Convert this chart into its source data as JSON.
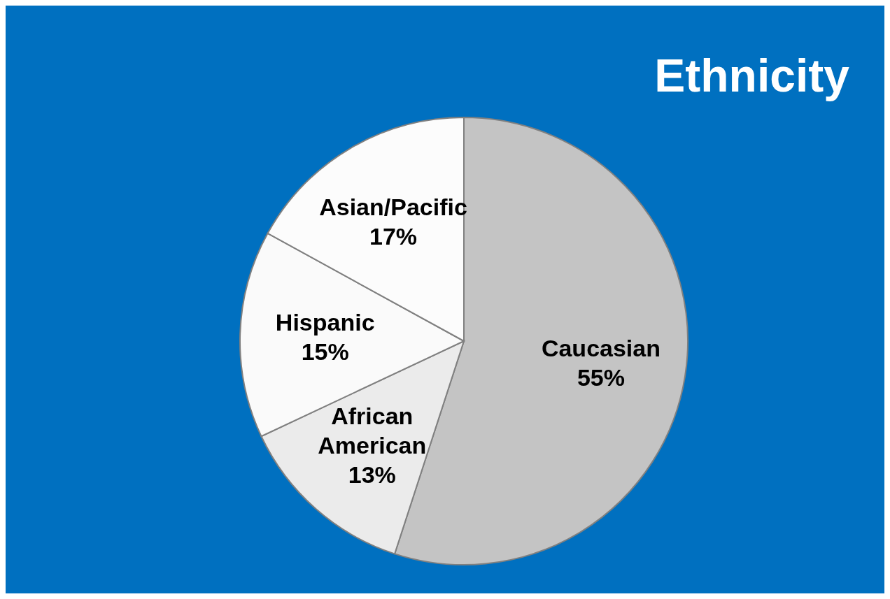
{
  "chart_data": {
    "type": "pie",
    "title": "Ethnicity",
    "categories": [
      "Caucasian",
      "African American",
      "Hispanic",
      "Asian/Pacific"
    ],
    "values": [
      55,
      13,
      15,
      17
    ],
    "colors": [
      "#c4c4c4",
      "#ebebeb",
      "#fafafa",
      "#fcfcfc"
    ],
    "value_labels": [
      "55%",
      "13%",
      "15%",
      "17%"
    ]
  }
}
